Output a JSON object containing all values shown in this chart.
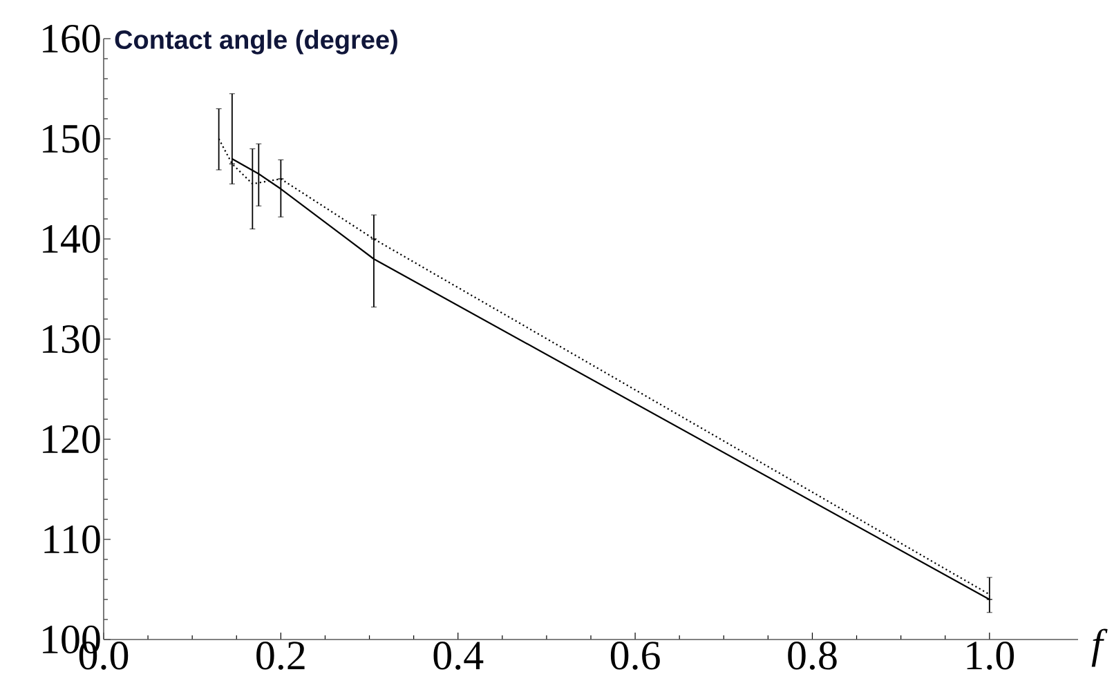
{
  "chart_data": {
    "type": "line",
    "ylabel": "Contact angle (degree)",
    "xlabel": "f",
    "xlim": [
      0,
      1.1
    ],
    "xticks": [
      {
        "value": 0,
        "label": "0.0"
      },
      0.2,
      0.4,
      0.6,
      0.8,
      {
        "value": 1,
        "label": "1.0"
      }
    ],
    "ylim": [
      100,
      160
    ],
    "yticks": [
      100,
      110,
      120,
      130,
      140,
      150,
      160
    ],
    "series": [
      {
        "color": "#000000",
        "line_style": "solid",
        "x": [
          0.145,
          0.175,
          0.2,
          0.305,
          1.0
        ],
        "values": [
          148,
          146.5,
          145,
          138,
          104
        ],
        "errors": [
          [
            145.5,
            154.5
          ],
          [
            143.3,
            149.5
          ],
          [
            142.2,
            147.9
          ],
          [
            133.2,
            142.4
          ],
          null
        ]
      },
      {
        "color": "#000000",
        "line_style": "dotted",
        "x": [
          0.13,
          0.145,
          0.168,
          0.2,
          0.305,
          1.0
        ],
        "values": [
          150,
          147.5,
          145.5,
          146,
          140,
          104.5
        ],
        "errors": [
          [
            146.9,
            153
          ],
          null,
          [
            141,
            149
          ],
          null,
          null,
          [
            102.7,
            106.2
          ]
        ]
      }
    ]
  }
}
